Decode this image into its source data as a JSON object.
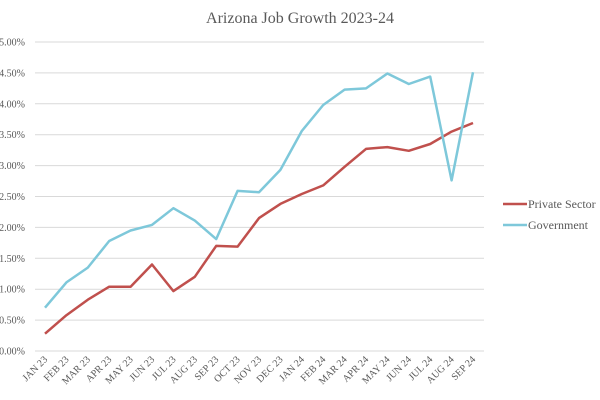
{
  "chart_data": {
    "type": "line",
    "title": "Arizona Job Growth 2023-24",
    "xlabel": "",
    "ylabel": "",
    "ylim": [
      0,
      5
    ],
    "yticks": [
      "0.00%",
      "0.50%",
      "1.00%",
      "1.50%",
      "2.00%",
      "2.50%",
      "3.00%",
      "3.50%",
      "4.00%",
      "4.50%",
      "5.00%"
    ],
    "grid": true,
    "legend_position": "right",
    "categories": [
      "JAN 23",
      "FEB 23",
      "MAR 23",
      "APR 23",
      "MAY 23",
      "JUN 23",
      "JUL 23",
      "AUG 23",
      "SEP 23",
      "OCT 23",
      "NOV 23",
      "DEC 23",
      "JAN 24",
      "FEB 24",
      "MAR 24",
      "APR 24",
      "MAY 24",
      "JUN 24",
      "JUL 24",
      "AUG 24",
      "SEP 24"
    ],
    "series": [
      {
        "name": "Private Sector",
        "color": "#C0504D",
        "values": [
          0.28,
          0.58,
          0.83,
          1.04,
          1.04,
          1.4,
          0.97,
          1.2,
          1.7,
          1.69,
          2.15,
          2.38,
          2.54,
          2.68,
          2.98,
          3.27,
          3.3,
          3.24,
          3.35,
          3.55,
          3.69
        ]
      },
      {
        "name": "Government",
        "color": "#7EC8DA",
        "values": [
          0.7,
          1.11,
          1.35,
          1.78,
          1.95,
          2.04,
          2.31,
          2.11,
          1.81,
          2.59,
          2.57,
          2.93,
          3.56,
          3.98,
          4.23,
          4.25,
          4.49,
          4.32,
          4.44,
          2.76,
          4.51
        ]
      }
    ]
  }
}
